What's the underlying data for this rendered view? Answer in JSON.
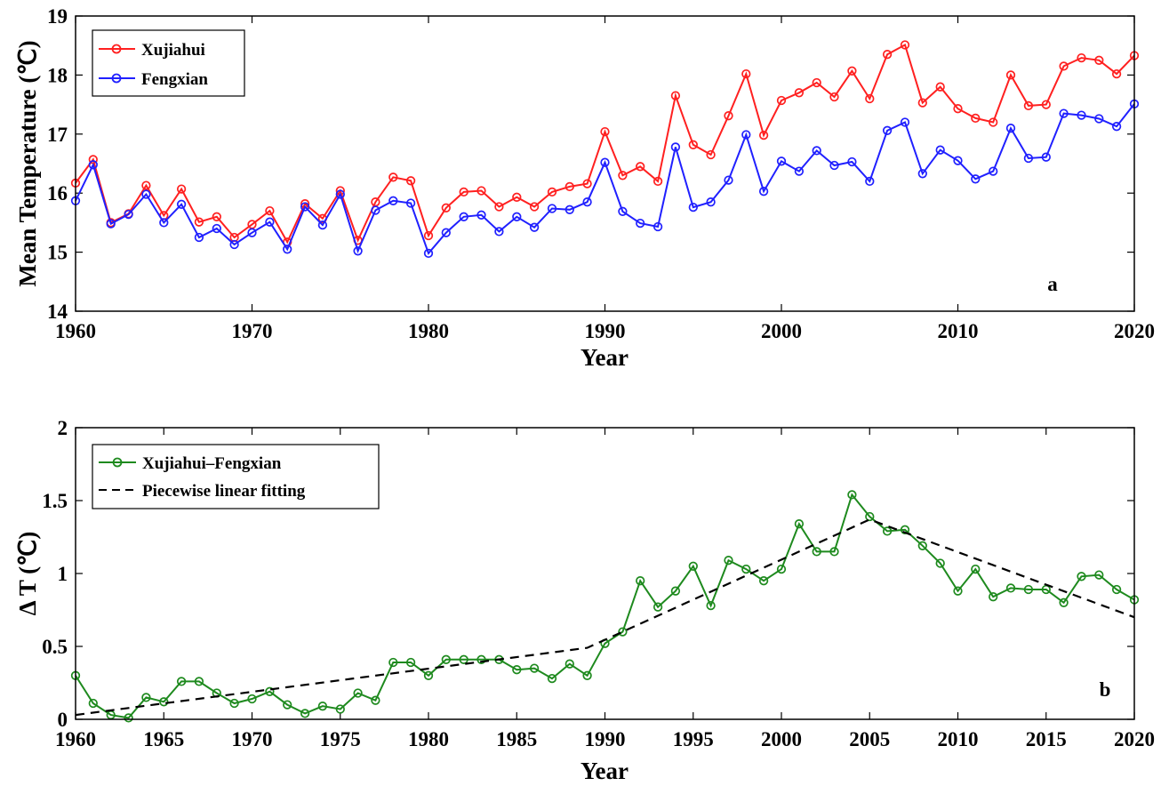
{
  "chart_data": [
    {
      "type": "line",
      "panel_label": "a",
      "xlabel": "Year",
      "ylabel": "Mean Temperature (℃)",
      "xlim": [
        1960,
        2020
      ],
      "ylim": [
        14,
        19
      ],
      "xticks": [
        1960,
        1970,
        1980,
        1990,
        2000,
        2010,
        2020
      ],
      "yticks": [
        14,
        15,
        16,
        17,
        18,
        19
      ],
      "legend_position": "top-left",
      "grid": false,
      "x": [
        1960,
        1961,
        1962,
        1963,
        1964,
        1965,
        1966,
        1967,
        1968,
        1969,
        1970,
        1971,
        1972,
        1973,
        1974,
        1975,
        1976,
        1977,
        1978,
        1979,
        1980,
        1981,
        1982,
        1983,
        1984,
        1985,
        1986,
        1987,
        1988,
        1989,
        1990,
        1991,
        1992,
        1993,
        1994,
        1995,
        1996,
        1997,
        1998,
        1999,
        2000,
        2001,
        2002,
        2003,
        2004,
        2005,
        2006,
        2007,
        2008,
        2009,
        2010,
        2011,
        2012,
        2013,
        2014,
        2015,
        2016,
        2017,
        2018,
        2019,
        2020
      ],
      "series": [
        {
          "name": "Xujiahui",
          "color": "#ff2020",
          "values": [
            16.17,
            16.57,
            15.5,
            15.65,
            16.13,
            15.62,
            16.07,
            15.51,
            15.6,
            15.25,
            15.47,
            15.7,
            15.17,
            15.82,
            15.57,
            16.04,
            15.2,
            15.85,
            16.27,
            16.21,
            15.28,
            15.75,
            16.02,
            16.04,
            15.77,
            15.93,
            15.77,
            16.02,
            16.11,
            16.16,
            17.04,
            16.3,
            16.45,
            16.2,
            17.65,
            16.82,
            16.65,
            17.31,
            18.02,
            16.98,
            17.57,
            17.7,
            17.87,
            17.63,
            18.07,
            17.6,
            18.35,
            18.51,
            17.53,
            17.8,
            17.43,
            17.27,
            17.2,
            18.0,
            17.48,
            17.5,
            18.15,
            18.29,
            18.25,
            18.02,
            18.33
          ]
        },
        {
          "name": "Fengxian",
          "color": "#2020ff",
          "values": [
            15.87,
            16.48,
            15.48,
            15.64,
            15.98,
            15.5,
            15.81,
            15.25,
            15.4,
            15.13,
            15.33,
            15.51,
            15.05,
            15.77,
            15.46,
            15.98,
            15.02,
            15.71,
            15.87,
            15.83,
            14.98,
            15.33,
            15.6,
            15.63,
            15.35,
            15.6,
            15.42,
            15.74,
            15.72,
            15.85,
            16.52,
            15.69,
            15.49,
            15.43,
            16.78,
            15.76,
            15.85,
            16.22,
            16.99,
            16.03,
            16.54,
            16.37,
            16.72,
            16.47,
            16.53,
            16.2,
            17.06,
            17.2,
            16.33,
            16.73,
            16.55,
            16.24,
            16.37,
            17.1,
            16.59,
            16.61,
            17.35,
            17.32,
            17.26,
            17.13,
            17.51
          ]
        }
      ]
    },
    {
      "type": "line",
      "panel_label": "b",
      "xlabel": "Year",
      "ylabel": "Δ T (℃)",
      "xlim": [
        1960,
        2020
      ],
      "ylim": [
        0,
        2
      ],
      "xticks": [
        1960,
        1965,
        1970,
        1975,
        1980,
        1985,
        1990,
        1995,
        2000,
        2005,
        2010,
        2015,
        2020
      ],
      "yticks": [
        "0",
        "0.5",
        "1",
        "1.5",
        "2"
      ],
      "legend_position": "top-left",
      "grid": false,
      "x": [
        1960,
        1961,
        1962,
        1963,
        1964,
        1965,
        1966,
        1967,
        1968,
        1969,
        1970,
        1971,
        1972,
        1973,
        1974,
        1975,
        1976,
        1977,
        1978,
        1979,
        1980,
        1981,
        1982,
        1983,
        1984,
        1985,
        1986,
        1987,
        1988,
        1989,
        1990,
        1991,
        1992,
        1993,
        1994,
        1995,
        1996,
        1997,
        1998,
        1999,
        2000,
        2001,
        2002,
        2003,
        2004,
        2005,
        2006,
        2007,
        2008,
        2009,
        2010,
        2011,
        2012,
        2013,
        2014,
        2015,
        2016,
        2017,
        2018,
        2019,
        2020
      ],
      "series": [
        {
          "name": "Xujiahui–Fengxian",
          "color": "#1e8a1e",
          "style": "solid-with-markers",
          "values": [
            0.3,
            0.11,
            0.03,
            0.01,
            0.15,
            0.12,
            0.26,
            0.26,
            0.18,
            0.11,
            0.14,
            0.19,
            0.1,
            0.04,
            0.09,
            0.07,
            0.18,
            0.13,
            0.39,
            0.39,
            0.3,
            0.41,
            0.41,
            0.41,
            0.41,
            0.34,
            0.35,
            0.28,
            0.38,
            0.3,
            0.52,
            0.6,
            0.95,
            0.77,
            0.88,
            1.05,
            0.78,
            1.09,
            1.03,
            0.95,
            1.03,
            1.34,
            1.15,
            1.15,
            1.54,
            1.39,
            1.29,
            1.3,
            1.19,
            1.07,
            0.88,
            1.03,
            0.84,
            0.9,
            0.89,
            0.89,
            0.8,
            0.98,
            0.99,
            0.89,
            0.82
          ]
        },
        {
          "name": "Piecewise linear fitting",
          "color": "#000000",
          "style": "dashed",
          "points": [
            [
              1960,
              0.03
            ],
            [
              1989,
              0.49
            ],
            [
              2005,
              1.37
            ],
            [
              2020,
              0.7
            ]
          ]
        }
      ]
    }
  ]
}
